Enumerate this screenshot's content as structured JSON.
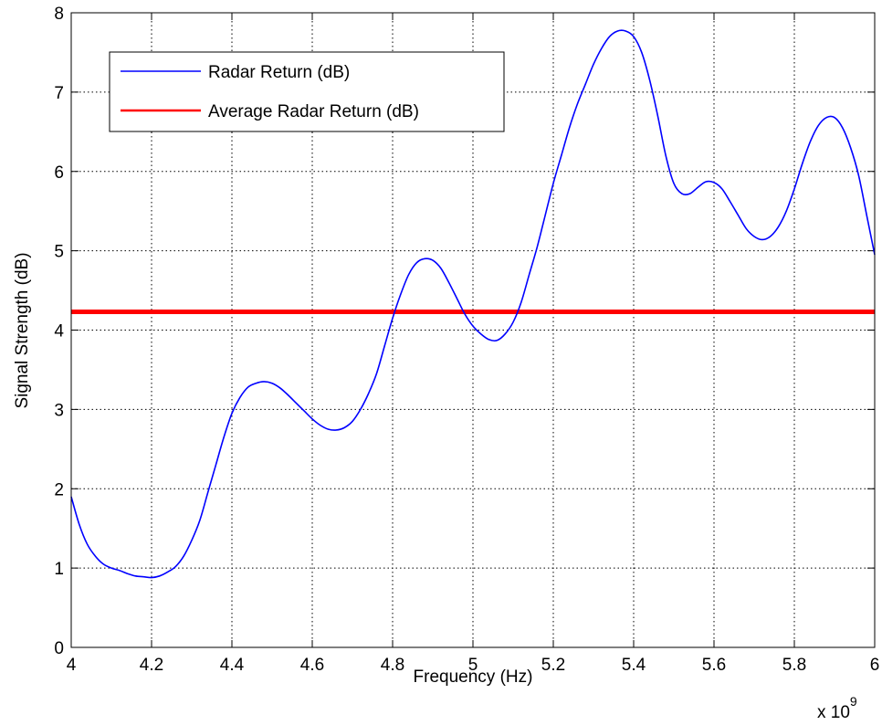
{
  "chart_data": {
    "type": "line",
    "title": "",
    "xlabel": "Frequency (Hz)",
    "ylabel": "Signal Strength (dB)",
    "x_multiplier": "x 10",
    "x_multiplier_exp": "9",
    "xlim": [
      4,
      6
    ],
    "ylim": [
      0,
      8
    ],
    "xticks": [
      4,
      4.2,
      4.4,
      4.6,
      4.8,
      5,
      5.2,
      5.4,
      5.6,
      5.8,
      6
    ],
    "xtick_labels": [
      "4",
      "4.2",
      "4.4",
      "4.6",
      "4.8",
      "5",
      "5.2",
      "5.4",
      "5.6",
      "5.8",
      "6"
    ],
    "yticks": [
      0,
      1,
      2,
      3,
      4,
      5,
      6,
      7,
      8
    ],
    "ytick_labels": [
      "0",
      "1",
      "2",
      "3",
      "4",
      "5",
      "6",
      "7",
      "8"
    ],
    "grid": true,
    "legend_position": "top-left",
    "series": [
      {
        "name": "Radar Return (dB)",
        "color": "#0000ff",
        "x": [
          4.0,
          4.02,
          4.04,
          4.06,
          4.08,
          4.1,
          4.12,
          4.14,
          4.16,
          4.18,
          4.2,
          4.22,
          4.24,
          4.26,
          4.28,
          4.3,
          4.32,
          4.34,
          4.36,
          4.38,
          4.4,
          4.42,
          4.44,
          4.46,
          4.48,
          4.5,
          4.52,
          4.54,
          4.56,
          4.58,
          4.6,
          4.62,
          4.64,
          4.66,
          4.68,
          4.7,
          4.72,
          4.74,
          4.76,
          4.78,
          4.8,
          4.82,
          4.84,
          4.86,
          4.88,
          4.9,
          4.92,
          4.94,
          4.96,
          4.98,
          5.0,
          5.02,
          5.04,
          5.06,
          5.08,
          5.1,
          5.12,
          5.14,
          5.16,
          5.18,
          5.2,
          5.22,
          5.24,
          5.26,
          5.28,
          5.3,
          5.32,
          5.34,
          5.36,
          5.38,
          5.4,
          5.42,
          5.44,
          5.46,
          5.48,
          5.5,
          5.52,
          5.54,
          5.56,
          5.58,
          5.6,
          5.62,
          5.64,
          5.66,
          5.68,
          5.7,
          5.72,
          5.74,
          5.76,
          5.78,
          5.8,
          5.82,
          5.84,
          5.86,
          5.88,
          5.9,
          5.92,
          5.94,
          5.96,
          5.98,
          6.0
        ],
        "y": [
          1.9,
          1.55,
          1.3,
          1.15,
          1.05,
          1.0,
          0.97,
          0.93,
          0.9,
          0.89,
          0.88,
          0.9,
          0.95,
          1.02,
          1.15,
          1.35,
          1.6,
          1.95,
          2.3,
          2.65,
          2.95,
          3.15,
          3.28,
          3.33,
          3.35,
          3.33,
          3.27,
          3.18,
          3.08,
          2.98,
          2.88,
          2.8,
          2.75,
          2.74,
          2.77,
          2.85,
          3.0,
          3.2,
          3.45,
          3.8,
          4.15,
          4.45,
          4.7,
          4.85,
          4.9,
          4.88,
          4.78,
          4.6,
          4.4,
          4.2,
          4.05,
          3.95,
          3.88,
          3.87,
          3.95,
          4.1,
          4.35,
          4.7,
          5.05,
          5.45,
          5.85,
          6.2,
          6.55,
          6.85,
          7.1,
          7.35,
          7.55,
          7.7,
          7.77,
          7.77,
          7.7,
          7.5,
          7.15,
          6.7,
          6.2,
          5.85,
          5.72,
          5.72,
          5.8,
          5.87,
          5.86,
          5.78,
          5.62,
          5.45,
          5.28,
          5.18,
          5.14,
          5.18,
          5.3,
          5.5,
          5.78,
          6.1,
          6.38,
          6.58,
          6.68,
          6.68,
          6.55,
          6.3,
          5.95,
          5.45,
          4.95
        ]
      },
      {
        "name": "Average Radar Return (dB)",
        "color": "#ff0000",
        "x": [
          4.0,
          6.0
        ],
        "y": [
          4.23,
          4.23
        ]
      }
    ]
  }
}
